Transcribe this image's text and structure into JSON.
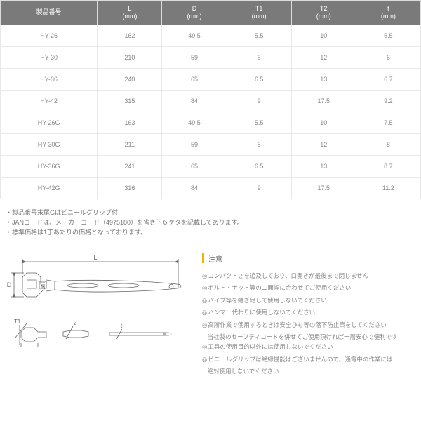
{
  "table": {
    "columns": [
      {
        "line1": "製品番号",
        "line2": ""
      },
      {
        "line1": "L",
        "line2": "(mm)"
      },
      {
        "line1": "D",
        "line2": "(mm)"
      },
      {
        "line1": "T1",
        "line2": "(mm)"
      },
      {
        "line1": "T2",
        "line2": "(mm)"
      },
      {
        "line1": "t",
        "line2": "(mm)"
      }
    ],
    "rows": [
      [
        "HY-26",
        "162",
        "49.5",
        "5.5",
        "10",
        "5.5"
      ],
      [
        "HY-30",
        "210",
        "59",
        "6",
        "12",
        "6"
      ],
      [
        "HY-36",
        "240",
        "65",
        "6.5",
        "13",
        "6.7"
      ],
      [
        "HY-42",
        "315",
        "84",
        "9",
        "17.5",
        "9.2"
      ],
      [
        "HY-26G",
        "163",
        "49.5",
        "5.5",
        "10",
        "7.5"
      ],
      [
        "HY-30G",
        "211",
        "59",
        "6",
        "12",
        "8"
      ],
      [
        "HY-36G",
        "241",
        "65",
        "6.5",
        "13",
        "8.7"
      ],
      [
        "HY-42G",
        "316",
        "84",
        "9",
        "17.5",
        "11.2"
      ]
    ]
  },
  "notes": [
    "製品番号末尾Gはビニールグリップ付",
    "JANコードは、メーカーコード（4975180）を省き下６ケタを記載してあります。",
    "標準価格は1丁あたりの価格となっております。"
  ],
  "caution": {
    "title": "注意",
    "items": [
      {
        "main": "コンパクトさを追及しており、口開きが最後まで閉じません"
      },
      {
        "main": "ボルト・ナット等の二面幅に合わせてご使用ください"
      },
      {
        "main": "パイプ等を継ぎ足して使用しないでください"
      },
      {
        "main": "ハンマー代わりに使用しないでください"
      },
      {
        "main": "高所作業で使用するときは安全ひも等の落下防止策をしてください",
        "sub": "当社製のセーフティコードを併せてご使用頂ければ一層安心で便利です"
      },
      {
        "main": "工具の使用目的以外には使用しないでください"
      },
      {
        "main": "ビニールグリップは絶縁機能はございませんので、通電中の作業には",
        "sub": "絶対使用しないでください"
      }
    ]
  },
  "diagram": {
    "L": "L",
    "D": "D",
    "T1": "T1",
    "T2": "T2",
    "t": "t"
  }
}
